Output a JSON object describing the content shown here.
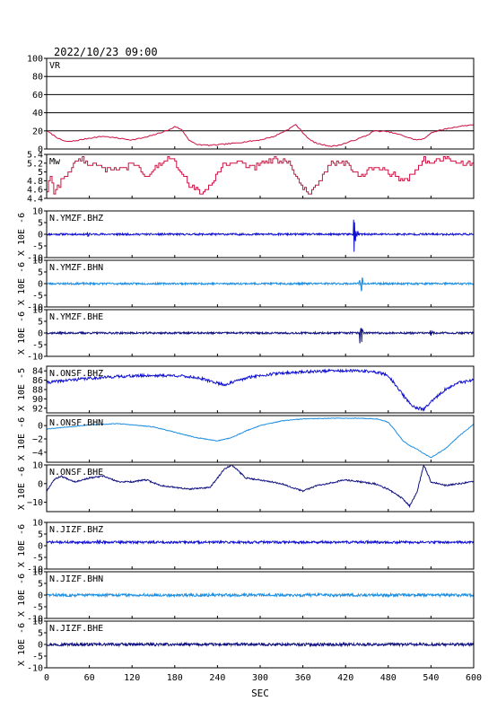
{
  "chart_data": {
    "type": "line",
    "title": "2022/10/23 09:00",
    "xlabel": "SEC",
    "xlim": [
      0,
      600
    ],
    "xticks": [
      0,
      60,
      120,
      180,
      240,
      300,
      360,
      420,
      480,
      540,
      600
    ],
    "panels": [
      {
        "label": "VR",
        "ylabel": "",
        "ylim": [
          0,
          100
        ],
        "yticks": [
          0,
          20,
          40,
          60,
          80,
          100
        ],
        "grid": true,
        "color": "#cc1040",
        "kind": "vr",
        "points": [
          [
            0,
            20
          ],
          [
            10,
            15
          ],
          [
            20,
            10
          ],
          [
            30,
            8
          ],
          [
            40,
            9
          ],
          [
            60,
            12
          ],
          [
            80,
            14
          ],
          [
            100,
            12
          ],
          [
            120,
            10
          ],
          [
            140,
            13
          ],
          [
            160,
            18
          ],
          [
            175,
            22
          ],
          [
            180,
            25
          ],
          [
            190,
            21
          ],
          [
            200,
            10
          ],
          [
            210,
            5
          ],
          [
            230,
            4
          ],
          [
            260,
            6
          ],
          [
            280,
            8
          ],
          [
            300,
            10
          ],
          [
            320,
            14
          ],
          [
            340,
            22
          ],
          [
            350,
            27
          ],
          [
            360,
            18
          ],
          [
            370,
            10
          ],
          [
            380,
            6
          ],
          [
            400,
            3
          ],
          [
            410,
            4
          ],
          [
            430,
            9
          ],
          [
            450,
            15
          ],
          [
            460,
            20
          ],
          [
            480,
            19
          ],
          [
            500,
            15
          ],
          [
            510,
            12
          ],
          [
            520,
            10
          ],
          [
            530,
            11
          ],
          [
            540,
            18
          ],
          [
            560,
            22
          ],
          [
            580,
            25
          ],
          [
            600,
            27
          ]
        ]
      },
      {
        "label": "Mw",
        "ylabel": "",
        "ylim": [
          4.4,
          5.4
        ],
        "yticks": [
          4.4,
          4.6,
          4.8,
          5.0,
          5.2,
          5.4
        ],
        "tick_labels": [
          "4.4",
          "4.6",
          "4.8",
          "5",
          "5.2",
          "5.4"
        ],
        "grid": false,
        "color": "#cc1040",
        "kind": "mw",
        "points": [
          [
            0,
            4.6
          ],
          [
            5,
            4.9
          ],
          [
            10,
            4.5
          ],
          [
            20,
            4.8
          ],
          [
            30,
            5.0
          ],
          [
            40,
            5.2
          ],
          [
            45,
            5.3
          ],
          [
            50,
            5.3
          ],
          [
            55,
            5.2
          ],
          [
            70,
            5.2
          ],
          [
            90,
            5.0
          ],
          [
            110,
            5.1
          ],
          [
            120,
            5.2
          ],
          [
            140,
            4.9
          ],
          [
            160,
            5.2
          ],
          [
            170,
            5.3
          ],
          [
            180,
            5.2
          ],
          [
            190,
            5.0
          ],
          [
            200,
            4.7
          ],
          [
            220,
            4.5
          ],
          [
            230,
            4.7
          ],
          [
            240,
            5.0
          ],
          [
            250,
            5.2
          ],
          [
            270,
            5.2
          ],
          [
            290,
            5.1
          ],
          [
            300,
            5.2
          ],
          [
            320,
            5.3
          ],
          [
            340,
            5.2
          ],
          [
            350,
            4.9
          ],
          [
            360,
            4.6
          ],
          [
            370,
            4.5
          ],
          [
            380,
            4.7
          ],
          [
            390,
            5.0
          ],
          [
            400,
            5.2
          ],
          [
            420,
            5.2
          ],
          [
            430,
            5.0
          ],
          [
            440,
            4.9
          ],
          [
            460,
            5.1
          ],
          [
            480,
            5.0
          ],
          [
            500,
            4.8
          ],
          [
            510,
            4.9
          ],
          [
            520,
            5.1
          ],
          [
            530,
            5.3
          ],
          [
            540,
            5.2
          ],
          [
            560,
            5.3
          ],
          [
            580,
            5.2
          ],
          [
            600,
            5.2
          ]
        ]
      },
      {
        "label": "N.YMZF.BHZ",
        "ylabel": "X 10E -6",
        "ylim": [
          -10,
          10
        ],
        "yticks": [
          -10,
          -5,
          0,
          5,
          10
        ],
        "color": "#1010d0",
        "kind": "noise",
        "baseline": 0,
        "noise": 0.4,
        "seed": 11,
        "events": [
          {
            "t": 58,
            "amp": 1.5,
            "dur": 6
          },
          {
            "t": 432,
            "amp": 9,
            "dur": 8
          }
        ]
      },
      {
        "label": "N.YMZF.BHN",
        "ylabel": "X 10E -6",
        "ylim": [
          -10,
          10
        ],
        "yticks": [
          -10,
          -5,
          0,
          5,
          10
        ],
        "color": "#1e8ee0",
        "kind": "noise",
        "baseline": 0,
        "noise": 0.4,
        "seed": 23,
        "events": [
          {
            "t": 440,
            "amp": 9,
            "dur": 8
          }
        ]
      },
      {
        "label": "N.YMZF.BHE",
        "ylabel": "X 10E -6",
        "ylim": [
          -10,
          10
        ],
        "yticks": [
          -10,
          -5,
          0,
          5,
          10
        ],
        "color": "#101080",
        "kind": "noise",
        "baseline": 0,
        "noise": 0.4,
        "seed": 37,
        "events": [
          {
            "t": 441,
            "amp": 9,
            "dur": 6
          },
          {
            "t": 540,
            "amp": 1.5,
            "dur": 5
          }
        ]
      },
      {
        "label": "N.ONSF.BHZ",
        "ylabel": "X 10E -5",
        "ylim": [
          -93,
          -83
        ],
        "yticks": [
          -92,
          -90,
          -88,
          -86,
          -84
        ],
        "tick_labels": [
          "92",
          "90",
          "88",
          "86",
          "84"
        ],
        "color": "#1010d0",
        "kind": "drift",
        "noise": 0.3,
        "seed": 41,
        "points": [
          [
            0,
            -86.5
          ],
          [
            30,
            -86
          ],
          [
            60,
            -85.6
          ],
          [
            100,
            -85.2
          ],
          [
            140,
            -85.0
          ],
          [
            180,
            -85.0
          ],
          [
            210,
            -85.4
          ],
          [
            230,
            -86.2
          ],
          [
            250,
            -87
          ],
          [
            270,
            -86
          ],
          [
            290,
            -85.2
          ],
          [
            320,
            -84.6
          ],
          [
            360,
            -84.2
          ],
          [
            400,
            -84.0
          ],
          [
            440,
            -84.0
          ],
          [
            465,
            -84.3
          ],
          [
            480,
            -85
          ],
          [
            490,
            -87
          ],
          [
            500,
            -89
          ],
          [
            510,
            -91
          ],
          [
            520,
            -92
          ],
          [
            530,
            -92.2
          ],
          [
            545,
            -90
          ],
          [
            560,
            -88
          ],
          [
            580,
            -86.5
          ],
          [
            600,
            -86
          ]
        ]
      },
      {
        "label": "N.ONSF.BHN",
        "ylabel": "X 10E -6",
        "ylim": [
          -5.5,
          1.5
        ],
        "yticks": [
          -4,
          -2,
          0
        ],
        "tick_labels": [
          "−4",
          "−2",
          "0"
        ],
        "color": "#1e8ee0",
        "kind": "drift",
        "noise": 0.05,
        "seed": 53,
        "points": [
          [
            0,
            -0.5
          ],
          [
            30,
            -0.2
          ],
          [
            60,
            0.1
          ],
          [
            100,
            0.3
          ],
          [
            150,
            -0.2
          ],
          [
            180,
            -1.0
          ],
          [
            210,
            -1.8
          ],
          [
            240,
            -2.3
          ],
          [
            260,
            -1.8
          ],
          [
            280,
            -0.8
          ],
          [
            300,
            0
          ],
          [
            330,
            0.7
          ],
          [
            360,
            1.0
          ],
          [
            400,
            1.1
          ],
          [
            440,
            1.1
          ],
          [
            465,
            1.0
          ],
          [
            480,
            0.5
          ],
          [
            490,
            -0.8
          ],
          [
            500,
            -2.2
          ],
          [
            510,
            -3.0
          ],
          [
            520,
            -3.5
          ],
          [
            530,
            -4.2
          ],
          [
            540,
            -4.8
          ],
          [
            560,
            -3.5
          ],
          [
            580,
            -1.5
          ],
          [
            600,
            0.2
          ]
        ]
      },
      {
        "label": "N.ONSF.BHE",
        "ylabel": "X 10E -6",
        "ylim": [
          -15,
          10
        ],
        "yticks": [
          -10,
          0,
          10
        ],
        "tick_labels": [
          "−10",
          "0",
          "10"
        ],
        "color": "#101080",
        "kind": "drift",
        "noise": 0.4,
        "seed": 67,
        "points": [
          [
            0,
            -4
          ],
          [
            10,
            2
          ],
          [
            20,
            4
          ],
          [
            40,
            1
          ],
          [
            60,
            3
          ],
          [
            80,
            4
          ],
          [
            100,
            1
          ],
          [
            120,
            1
          ],
          [
            140,
            2
          ],
          [
            160,
            -1
          ],
          [
            200,
            -3
          ],
          [
            230,
            -2
          ],
          [
            250,
            8
          ],
          [
            260,
            10
          ],
          [
            280,
            3
          ],
          [
            300,
            2
          ],
          [
            330,
            0
          ],
          [
            360,
            -4
          ],
          [
            380,
            -1
          ],
          [
            420,
            2
          ],
          [
            460,
            0
          ],
          [
            480,
            -3
          ],
          [
            500,
            -8
          ],
          [
            510,
            -12
          ],
          [
            520,
            -5
          ],
          [
            530,
            10
          ],
          [
            540,
            1
          ],
          [
            560,
            -1
          ],
          [
            600,
            1
          ]
        ]
      },
      {
        "label": "N.JIZF.BHZ",
        "ylabel": "X 10E -6",
        "ylim": [
          -10,
          10
        ],
        "yticks": [
          -10,
          -5,
          0,
          5,
          10
        ],
        "color": "#1010d0",
        "kind": "noise",
        "baseline": 1.5,
        "noise": 0.5,
        "seed": 71,
        "events": [
          {
            "t": 72,
            "amp": 1.5,
            "dur": 10
          }
        ]
      },
      {
        "label": "N.JIZF.BHN",
        "ylabel": "X 10E -6",
        "ylim": [
          -10,
          10
        ],
        "yticks": [
          -10,
          -5,
          0,
          5,
          10
        ],
        "color": "#1e8ee0",
        "kind": "noise",
        "baseline": 0,
        "noise": 0.6,
        "seed": 83,
        "events": []
      },
      {
        "label": "N.JIZF.BHE",
        "ylabel": "X 10E -6",
        "ylim": [
          -10,
          10
        ],
        "yticks": [
          -10,
          -5,
          0,
          5,
          10
        ],
        "color": "#101080",
        "kind": "noise",
        "baseline": 0,
        "noise": 0.6,
        "seed": 97,
        "events": []
      }
    ]
  }
}
